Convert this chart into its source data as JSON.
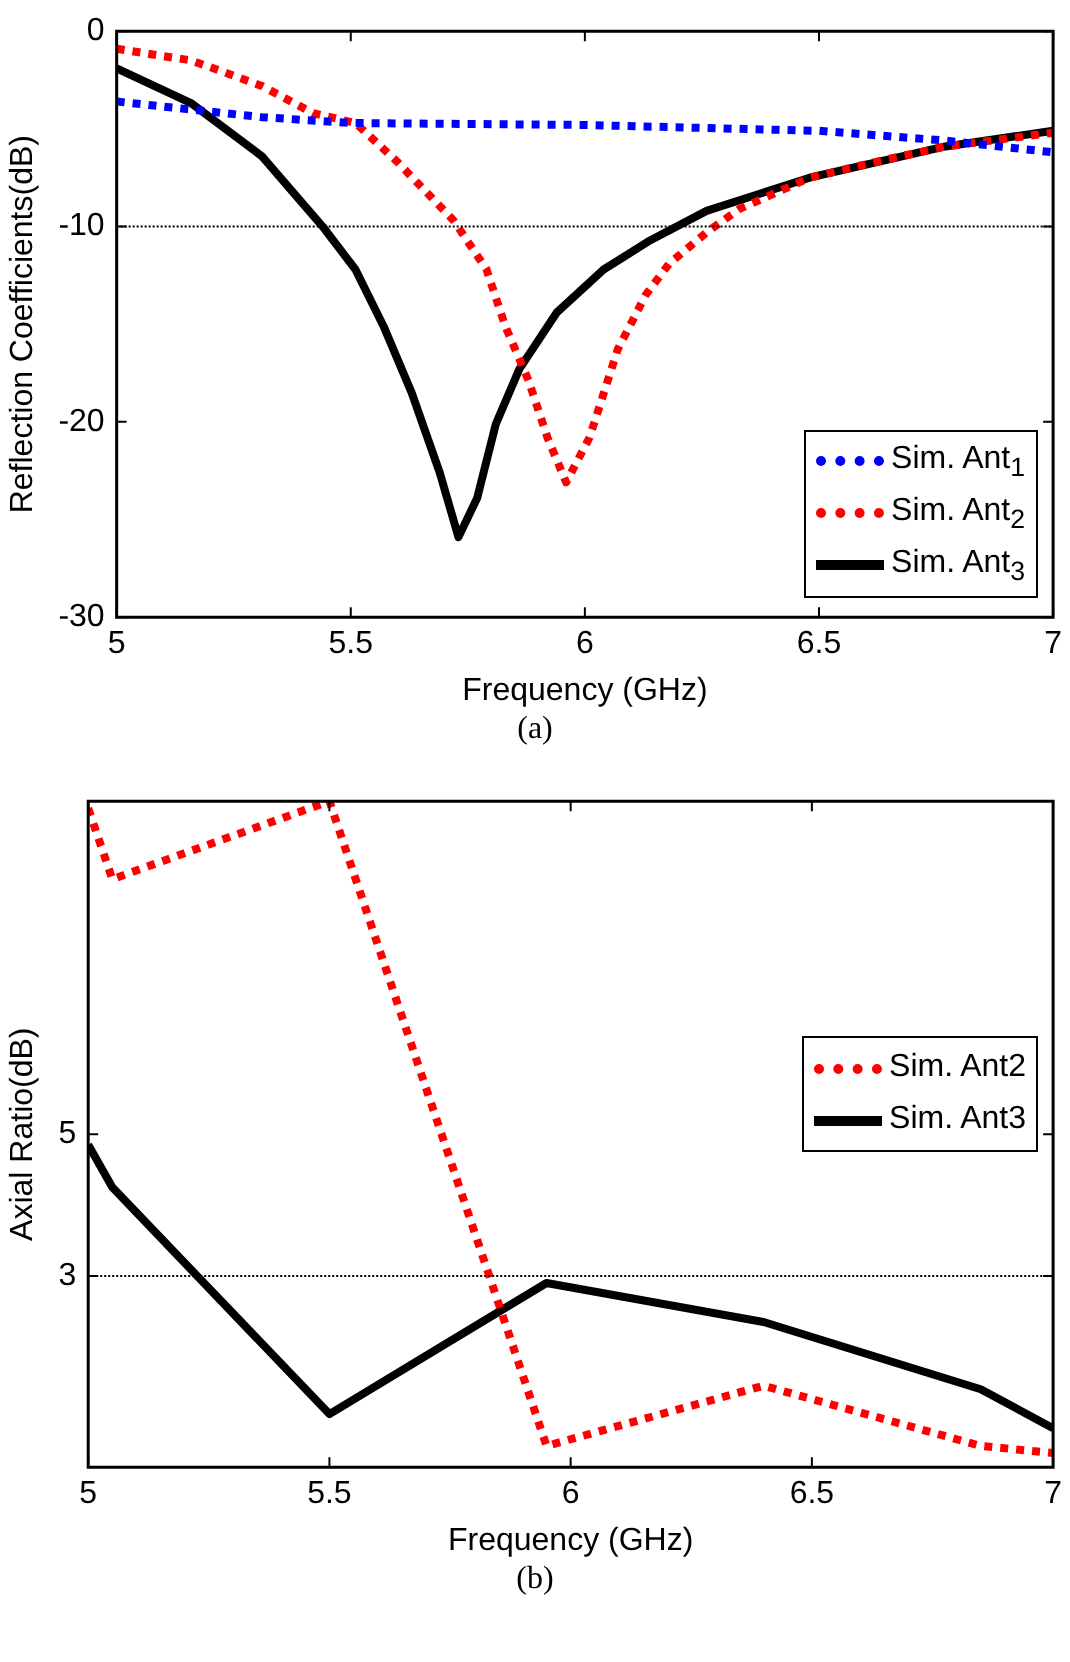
{
  "chart_data": [
    {
      "type": "line",
      "xlabel": "Frequency (GHz)",
      "ylabel": "Reflection Coefficients(dB)",
      "xlim": [
        5,
        7
      ],
      "xticks": [
        5,
        5.5,
        6,
        6.5,
        7
      ],
      "ylim": [
        -30,
        0
      ],
      "yticks": [
        -30,
        -20,
        -10,
        0
      ],
      "legend": "bottom right",
      "annotations": [
        "(a)"
      ],
      "ref_lines": [
        {
          "axis": "y",
          "value": -10,
          "label": null,
          "color": "#000000",
          "line_style": "dotted"
        }
      ],
      "series": [
        {
          "name": "Sim. Ant$_{1}$",
          "color": "#0000ff",
          "line_style": "dotted",
          "x": [
            5,
            5.31,
            5.5,
            6,
            6.5,
            6.77,
            7
          ],
          "values": [
            -3.6,
            -4.4,
            -4.7,
            -4.8,
            -5.1,
            -5.6,
            -6.2
          ]
        },
        {
          "name": "Sim. Ant$_{2}$",
          "color": "#ff0000",
          "line_style": "dotted",
          "x": [
            5,
            5.16,
            5.31,
            5.42,
            5.51,
            5.6,
            5.72,
            5.79,
            5.83,
            5.88,
            5.92,
            5.96,
            6.01,
            6.07,
            6.13,
            6.18,
            6.26,
            6.33,
            6.48,
            6.62,
            6.77,
            7
          ],
          "values": [
            -0.9,
            -1.5,
            -2.8,
            -4.2,
            -4.7,
            -6.7,
            -9.7,
            -12.2,
            -15.1,
            -17.9,
            -20.8,
            -23.1,
            -20.8,
            -16.3,
            -13.5,
            -11.9,
            -10.3,
            -9.1,
            -7.5,
            -6.7,
            -5.9,
            -5.2
          ]
        },
        {
          "name": "Sim. Ant$_{3}$",
          "color": "#000000",
          "line_style": "solid",
          "x": [
            5,
            5.16,
            5.31,
            5.44,
            5.51,
            5.57,
            5.63,
            5.69,
            5.73,
            5.77,
            5.81,
            5.86,
            5.94,
            6.04,
            6.14,
            6.26,
            6.48,
            6.77,
            7
          ],
          "values": [
            -1.9,
            -3.7,
            -6.4,
            -10,
            -12.2,
            -15.1,
            -18.5,
            -22.6,
            -25.9,
            -23.9,
            -20.1,
            -17.3,
            -14.4,
            -12.2,
            -10.7,
            -9.2,
            -7.5,
            -5.9,
            -5.1
          ]
        }
      ]
    },
    {
      "type": "line",
      "xlabel": "Frequency (GHz)",
      "ylabel": "Axial Ratio(dB)",
      "xlim": [
        5,
        7
      ],
      "xticks": [
        5,
        5.5,
        6,
        6.5,
        7
      ],
      "ylim": [
        0.3,
        9.7
      ],
      "yticks": [
        3,
        5
      ],
      "legend": "right",
      "annotations": [
        "(b)"
      ],
      "ref_lines": [
        {
          "axis": "y",
          "value": 3,
          "label": null,
          "color": "#000000",
          "line_style": "dotted"
        }
      ],
      "series": [
        {
          "name": "Sim. Ant2",
          "color": "#ff0000",
          "line_style": "dotted",
          "x": [
            5,
            5.05,
            5.5,
            5.95,
            6.4,
            6.85,
            7
          ],
          "values": [
            9.6,
            8.6,
            9.7,
            0.6,
            1.45,
            0.6,
            0.5
          ]
        },
        {
          "name": "Sim. Ant3",
          "color": "#000000",
          "line_style": "solid",
          "x": [
            5,
            5.05,
            5.5,
            5.95,
            6.4,
            6.85,
            7
          ],
          "values": [
            4.85,
            4.25,
            1.05,
            2.9,
            2.35,
            1.4,
            0.85
          ]
        }
      ]
    }
  ]
}
